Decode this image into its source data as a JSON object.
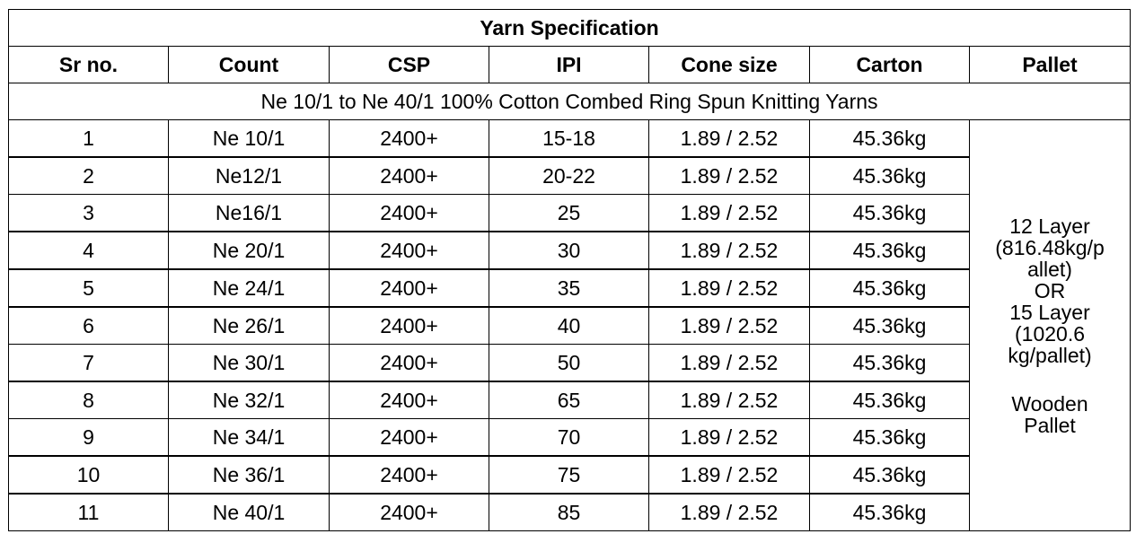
{
  "table": {
    "title": "Yarn Specification",
    "headers": [
      "Sr no.",
      "Count",
      "CSP",
      "IPI",
      "Cone size",
      "Carton",
      "Pallet"
    ],
    "subheading": "Ne 10/1 to Ne 40/1 100% Cotton Combed Ring Spun Knitting Yarns",
    "rows": [
      {
        "sr": "1",
        "count": "Ne 10/1",
        "csp": "2400+",
        "ipi": "15-18",
        "cone": "1.89 / 2.52",
        "carton": "45.36kg"
      },
      {
        "sr": "2",
        "count": "Ne12/1",
        "csp": "2400+",
        "ipi": "20-22",
        "cone": "1.89 / 2.52",
        "carton": "45.36kg"
      },
      {
        "sr": "3",
        "count": "Ne16/1",
        "csp": "2400+",
        "ipi": "25",
        "cone": "1.89 / 2.52",
        "carton": "45.36kg"
      },
      {
        "sr": "4",
        "count": "Ne 20/1",
        "csp": "2400+",
        "ipi": "30",
        "cone": "1.89 / 2.52",
        "carton": "45.36kg"
      },
      {
        "sr": "5",
        "count": "Ne 24/1",
        "csp": "2400+",
        "ipi": "35",
        "cone": "1.89 / 2.52",
        "carton": "45.36kg"
      },
      {
        "sr": "6",
        "count": "Ne 26/1",
        "csp": "2400+",
        "ipi": "40",
        "cone": "1.89 / 2.52",
        "carton": "45.36kg"
      },
      {
        "sr": "7",
        "count": "Ne 30/1",
        "csp": "2400+",
        "ipi": "50",
        "cone": "1.89 / 2.52",
        "carton": "45.36kg"
      },
      {
        "sr": "8",
        "count": "Ne 32/1",
        "csp": "2400+",
        "ipi": "65",
        "cone": "1.89 / 2.52",
        "carton": "45.36kg"
      },
      {
        "sr": "9",
        "count": "Ne 34/1",
        "csp": "2400+",
        "ipi": "70",
        "cone": "1.89 / 2.52",
        "carton": "45.36kg"
      },
      {
        "sr": "10",
        "count": "Ne 36/1",
        "csp": "2400+",
        "ipi": "75",
        "cone": "1.89 / 2.52",
        "carton": "45.36kg"
      },
      {
        "sr": "11",
        "count": "Ne 40/1",
        "csp": "2400+",
        "ipi": "85",
        "cone": "1.89 / 2.52",
        "carton": "45.36kg"
      }
    ],
    "pallet_note": {
      "line1": "12 Layer",
      "line2": "(816.48kg/p",
      "line3": "allet)",
      "line4": "OR",
      "line5": "15 Layer",
      "line6": "(1020.6",
      "line7": "kg/pallet)",
      "line8": "Wooden",
      "line9": "Pallet"
    }
  }
}
